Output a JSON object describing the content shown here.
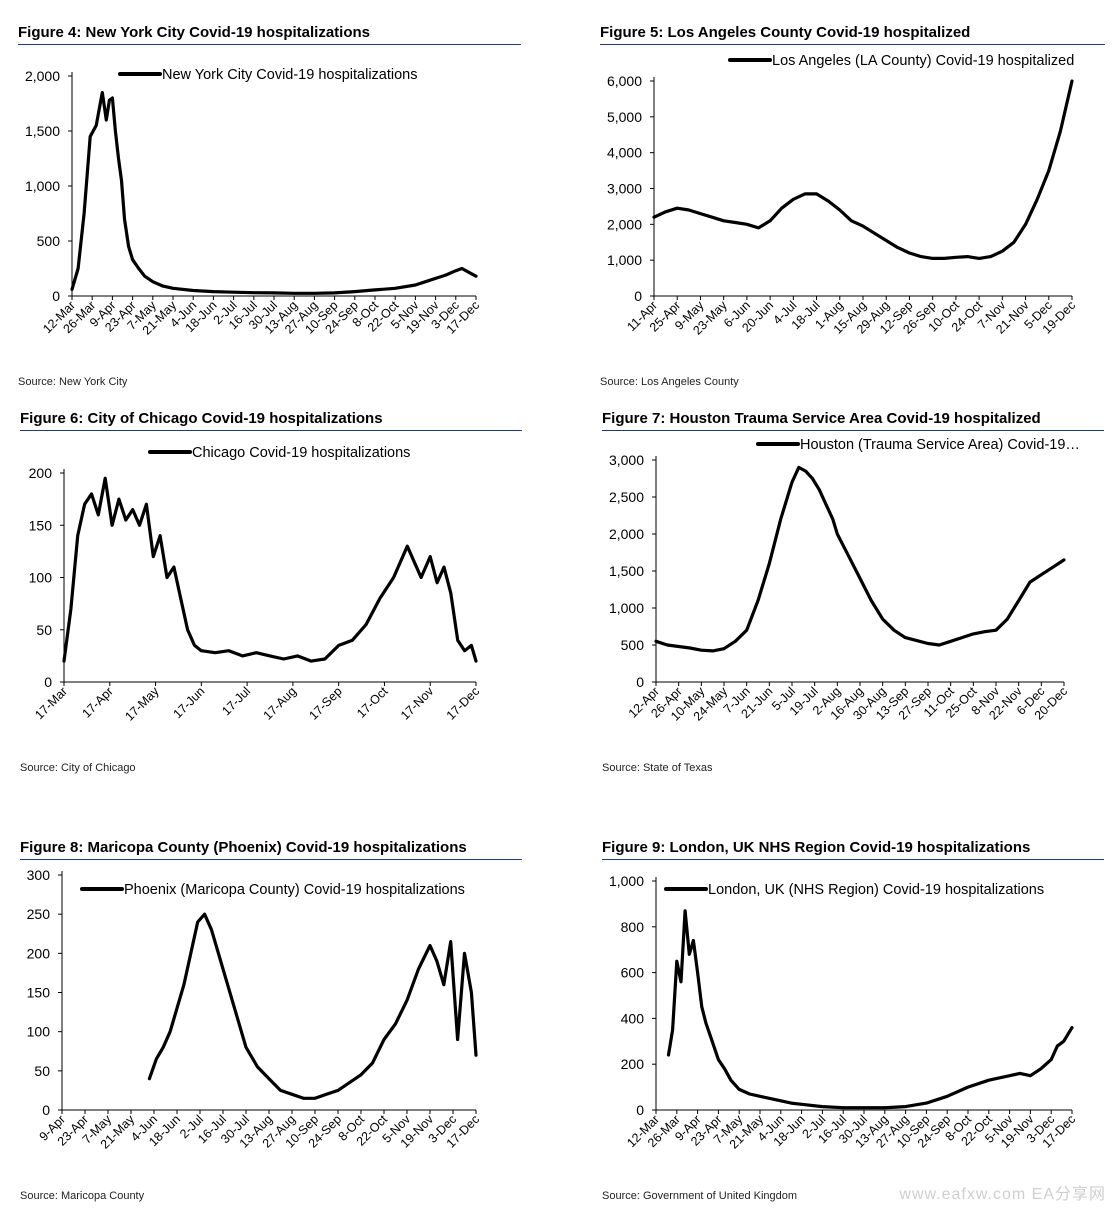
{
  "watermark": "www.eafxw.com  EA分享网",
  "chart_data": [
    {
      "type": "line",
      "title": "Figure 4: New York City Covid-19 hospitalizations",
      "source": "Source: New York City",
      "ylim": [
        0,
        2000
      ],
      "yticks": [
        "0",
        "500",
        "1,000",
        "1,500",
        "2,000"
      ],
      "ytick_values": [
        0,
        500,
        1000,
        1500,
        2000
      ],
      "categories": [
        "12-Mar",
        "26-Mar",
        "9-Apr",
        "23-Apr",
        "7-May",
        "21-May",
        "4-Jun",
        "18-Jun",
        "2-Jul",
        "16-Jul",
        "30-Jul",
        "13-Aug",
        "27-Aug",
        "10-Sep",
        "24-Sep",
        "8-Oct",
        "22-Oct",
        "5-Nov",
        "19-Nov",
        "3-Dec",
        "17-Dec"
      ],
      "legend": "New York City Covid-19 hospitalizations",
      "series": [
        {
          "name": "New York City Covid-19 hospitalizations",
          "x": [
            0,
            0.3,
            0.6,
            0.9,
            1.2,
            1.5,
            1.7,
            1.85,
            2,
            2.15,
            2.3,
            2.45,
            2.6,
            2.8,
            3,
            3.3,
            3.6,
            4,
            4.5,
            5,
            6,
            7,
            8,
            9,
            10,
            11,
            12,
            13,
            14,
            15,
            16,
            17,
            17.5,
            18,
            18.5,
            19,
            19.3,
            19.6,
            20
          ],
          "values": [
            60,
            250,
            750,
            1450,
            1550,
            1850,
            1600,
            1780,
            1800,
            1500,
            1250,
            1050,
            700,
            450,
            330,
            250,
            180,
            130,
            90,
            70,
            50,
            40,
            35,
            30,
            28,
            25,
            25,
            28,
            40,
            55,
            70,
            100,
            130,
            160,
            190,
            230,
            250,
            220,
            180
          ]
        }
      ]
    },
    {
      "type": "line",
      "title": "Figure 5: Los Angeles County Covid-19 hospitalized",
      "source": "Source: Los Angeles County",
      "ylim": [
        0,
        6000
      ],
      "yticks": [
        "0",
        "1,000",
        "2,000",
        "3,000",
        "4,000",
        "5,000",
        "6,000"
      ],
      "ytick_values": [
        0,
        1000,
        2000,
        3000,
        4000,
        5000,
        6000
      ],
      "categories": [
        "11-Apr",
        "25-Apr",
        "9-May",
        "23-May",
        "6-Jun",
        "20-Jun",
        "4-Jul",
        "18-Jul",
        "1-Aug",
        "15-Aug",
        "29-Aug",
        "12-Sep",
        "26-Sep",
        "10-Oct",
        "24-Oct",
        "7-Nov",
        "21-Nov",
        "5-Dec",
        "19-Dec"
      ],
      "legend": "Los Angeles (LA County) Covid-19 hospitalized",
      "series": [
        {
          "name": "Los Angeles (LA County) Covid-19 hospitalized",
          "x": [
            0,
            0.5,
            1,
            1.5,
            2,
            2.5,
            3,
            3.5,
            4,
            4.5,
            5,
            5.5,
            6,
            6.5,
            7,
            7.5,
            8,
            8.5,
            9,
            9.5,
            10,
            10.5,
            11,
            11.5,
            12,
            12.5,
            13,
            13.5,
            14,
            14.5,
            15,
            15.5,
            16,
            16.5,
            17,
            17.5,
            18
          ],
          "values": [
            2200,
            2350,
            2450,
            2400,
            2300,
            2200,
            2100,
            2050,
            2000,
            1900,
            2100,
            2450,
            2700,
            2850,
            2850,
            2650,
            2400,
            2100,
            1950,
            1750,
            1550,
            1350,
            1200,
            1100,
            1050,
            1050,
            1080,
            1100,
            1050,
            1100,
            1250,
            1500,
            2000,
            2700,
            3500,
            4600,
            6000
          ]
        }
      ]
    },
    {
      "type": "line",
      "title": "Figure 6: City of Chicago Covid-19 hospitalizations",
      "source": "Source: City of Chicago",
      "ylim": [
        0,
        200
      ],
      "yticks": [
        "0",
        "50",
        "100",
        "150",
        "200"
      ],
      "ytick_values": [
        0,
        50,
        100,
        150,
        200
      ],
      "categories": [
        "17-Mar",
        "17-Apr",
        "17-May",
        "17-Jun",
        "17-Jul",
        "17-Aug",
        "17-Sep",
        "17-Oct",
        "17-Nov",
        "17-Dec"
      ],
      "legend": "Chicago Covid-19 hospitalizations",
      "series": [
        {
          "name": "Chicago Covid-19 hospitalizations",
          "x": [
            0,
            0.15,
            0.3,
            0.45,
            0.6,
            0.75,
            0.9,
            1.05,
            1.2,
            1.35,
            1.5,
            1.65,
            1.8,
            1.95,
            2.1,
            2.25,
            2.4,
            2.55,
            2.7,
            2.85,
            3,
            3.3,
            3.6,
            3.9,
            4.2,
            4.5,
            4.8,
            5.1,
            5.4,
            5.7,
            6,
            6.3,
            6.6,
            6.9,
            7.2,
            7.5,
            7.8,
            8,
            8.15,
            8.3,
            8.45,
            8.6,
            8.75,
            8.9,
            9
          ],
          "values": [
            20,
            70,
            140,
            170,
            180,
            160,
            195,
            150,
            175,
            155,
            165,
            150,
            170,
            120,
            140,
            100,
            110,
            80,
            50,
            35,
            30,
            28,
            30,
            25,
            28,
            25,
            22,
            25,
            20,
            22,
            35,
            40,
            55,
            80,
            100,
            130,
            100,
            120,
            95,
            110,
            85,
            40,
            30,
            35,
            20
          ]
        }
      ]
    },
    {
      "type": "line",
      "title": "Figure 7: Houston Trauma Service Area Covid-19 hospitalized",
      "source": "Source: State of Texas",
      "ylim": [
        0,
        3000
      ],
      "yticks": [
        "0",
        "500",
        "1,000",
        "1,500",
        "2,000",
        "2,500",
        "3,000"
      ],
      "ytick_values": [
        0,
        500,
        1000,
        1500,
        2000,
        2500,
        3000
      ],
      "categories": [
        "12-Apr",
        "26-Apr",
        "10-May",
        "24-May",
        "7-Jun",
        "21-Jun",
        "5-Jul",
        "19-Jul",
        "2-Aug",
        "16-Aug",
        "30-Aug",
        "13-Sep",
        "27-Sep",
        "11-Oct",
        "25-Oct",
        "8-Nov",
        "22-Nov",
        "6-Dec",
        "20-Dec"
      ],
      "legend": "Houston (Trauma Service Area) Covid-19…",
      "series": [
        {
          "name": "Houston (Trauma Service Area) Covid-19…",
          "x": [
            0,
            0.5,
            1,
            1.5,
            2,
            2.5,
            3,
            3.5,
            4,
            4.5,
            5,
            5.5,
            6,
            6.3,
            6.6,
            6.9,
            7.2,
            7.5,
            7.8,
            8,
            8.5,
            9,
            9.5,
            10,
            10.5,
            11,
            11.5,
            12,
            12.5,
            13,
            13.5,
            14,
            14.5,
            15,
            15.5,
            16,
            16.5,
            17,
            17.5,
            18
          ],
          "values": [
            550,
            500,
            480,
            460,
            430,
            420,
            450,
            550,
            700,
            1100,
            1600,
            2200,
            2700,
            2900,
            2850,
            2750,
            2600,
            2400,
            2200,
            2000,
            1700,
            1400,
            1100,
            850,
            700,
            600,
            560,
            520,
            500,
            550,
            600,
            650,
            680,
            700,
            850,
            1100,
            1350,
            1450,
            1550,
            1650
          ]
        }
      ]
    },
    {
      "type": "line",
      "title": "Figure 8: Maricopa County (Phoenix) Covid-19 hospitalizations",
      "source": "Source: Maricopa County",
      "ylim": [
        0,
        300
      ],
      "yticks": [
        "0",
        "50",
        "100",
        "150",
        "200",
        "250",
        "300"
      ],
      "ytick_values": [
        0,
        50,
        100,
        150,
        200,
        250,
        300
      ],
      "categories": [
        "9-Apr",
        "23-Apr",
        "7-May",
        "21-May",
        "4-Jun",
        "18-Jun",
        "2-Jul",
        "16-Jul",
        "30-Jul",
        "13-Aug",
        "27-Aug",
        "10-Sep",
        "24-Sep",
        "8-Oct",
        "22-Oct",
        "5-Nov",
        "19-Nov",
        "3-Dec",
        "17-Dec"
      ],
      "legend": "Phoenix (Maricopa County) Covid-19 hospitalizations",
      "series": [
        {
          "name": "Phoenix (Maricopa County) Covid-19 hospitalizations",
          "x": [
            3.8,
            4.1,
            4.4,
            4.7,
            5,
            5.3,
            5.6,
            5.9,
            6.2,
            6.5,
            6.8,
            7.1,
            7.4,
            7.7,
            8,
            8.5,
            9,
            9.5,
            10,
            10.5,
            11,
            11.5,
            12,
            12.5,
            13,
            13.5,
            14,
            14.5,
            15,
            15.5,
            16,
            16.3,
            16.6,
            16.9,
            17.2,
            17.5,
            17.8,
            18
          ],
          "values": [
            40,
            65,
            80,
            100,
            130,
            160,
            200,
            240,
            250,
            230,
            200,
            170,
            140,
            110,
            80,
            55,
            40,
            25,
            20,
            15,
            15,
            20,
            25,
            35,
            45,
            60,
            90,
            110,
            140,
            180,
            210,
            190,
            160,
            215,
            90,
            200,
            150,
            70
          ]
        }
      ]
    },
    {
      "type": "line",
      "title": "Figure 9: London, UK NHS Region Covid-19 hospitalizations",
      "source": "Source: Government of United Kingdom",
      "ylim": [
        0,
        1000
      ],
      "yticks": [
        "0",
        "200",
        "400",
        "600",
        "800",
        "1,000"
      ],
      "ytick_values": [
        0,
        200,
        400,
        600,
        800,
        1000
      ],
      "categories": [
        "12-Mar",
        "26-Mar",
        "9-Apr",
        "23-Apr",
        "7-May",
        "21-May",
        "4-Jun",
        "18-Jun",
        "2-Jul",
        "16-Jul",
        "30-Jul",
        "13-Aug",
        "27-Aug",
        "10-Sep",
        "24-Sep",
        "8-Oct",
        "22-Oct",
        "5-Nov",
        "19-Nov",
        "3-Dec",
        "17-Dec"
      ],
      "legend": "London, UK (NHS Region) Covid-19 hospitalizations",
      "series": [
        {
          "name": "London, UK (NHS Region) Covid-19 hospitalizations",
          "x": [
            0.6,
            0.8,
            1,
            1.2,
            1.4,
            1.6,
            1.8,
            2,
            2.2,
            2.4,
            2.7,
            3,
            3.3,
            3.6,
            4,
            4.5,
            5,
            5.5,
            6,
            6.5,
            7,
            8,
            9,
            10,
            11,
            12,
            13,
            14,
            15,
            16,
            17,
            17.5,
            18,
            18.5,
            19,
            19.3,
            19.6,
            20
          ],
          "values": [
            240,
            350,
            650,
            560,
            870,
            680,
            740,
            600,
            450,
            380,
            300,
            220,
            180,
            130,
            90,
            70,
            60,
            50,
            40,
            30,
            25,
            15,
            10,
            10,
            10,
            15,
            30,
            60,
            100,
            130,
            150,
            160,
            150,
            180,
            220,
            280,
            300,
            360
          ]
        }
      ]
    }
  ]
}
